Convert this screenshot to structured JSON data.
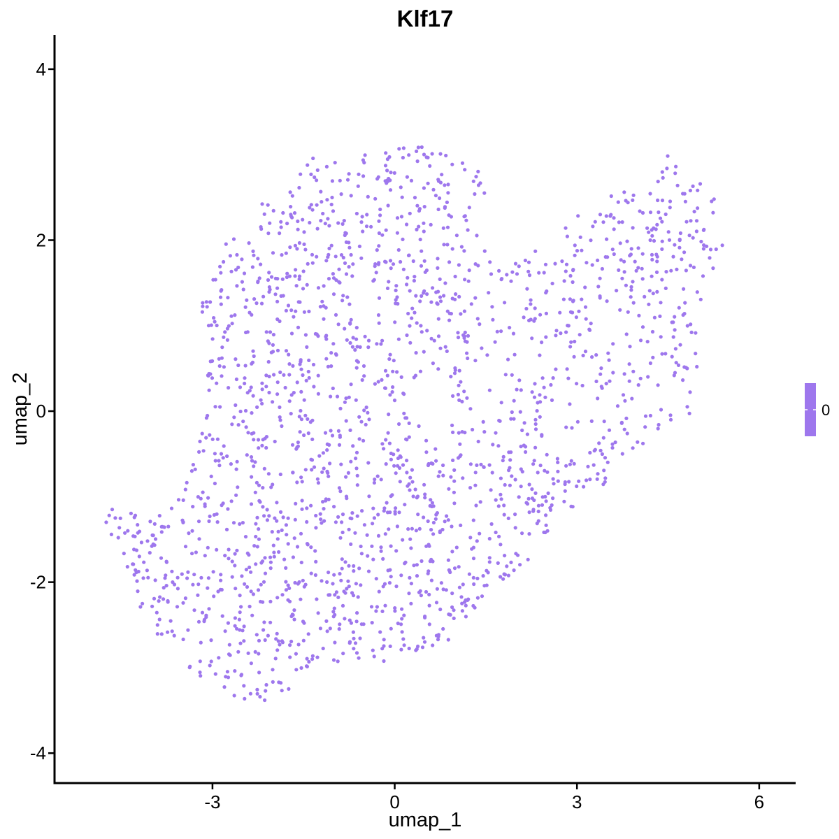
{
  "chart_data": {
    "type": "scatter",
    "title": "Klf17",
    "xlabel": "umap_1",
    "ylabel": "umap_2",
    "xlim": [
      -5.6,
      6.6
    ],
    "ylim": [
      -4.35,
      4.4
    ],
    "x_ticks": [
      -3,
      0,
      3,
      6
    ],
    "y_ticks": [
      4,
      2,
      0,
      -2,
      -4
    ],
    "x_tick_labels": [
      "-3",
      "0",
      "3",
      "6"
    ],
    "y_tick_labels": [
      "4",
      "2",
      "0",
      "-2",
      "-4"
    ],
    "grid": false,
    "point_color": "#9E77ED",
    "legend": {
      "type": "colorbar",
      "placement": "right",
      "color": "#9E77ED",
      "labels": [
        "0"
      ]
    },
    "expression_value_all_cells": 0,
    "cluster_outline": [
      [
        -4.7,
        -1.4
      ],
      [
        -4.5,
        -1.1
      ],
      [
        -4.1,
        -1.25
      ],
      [
        -3.6,
        -1.05
      ],
      [
        -3.2,
        -0.3
      ],
      [
        -3.05,
        0.3
      ],
      [
        -3.25,
        1.25
      ],
      [
        -2.9,
        1.9
      ],
      [
        -2.55,
        2.1
      ],
      [
        -2.25,
        2.55
      ],
      [
        -2.0,
        2.85
      ],
      [
        -1.2,
        3.0
      ],
      [
        -0.6,
        3.0
      ],
      [
        0.3,
        3.15
      ],
      [
        1.1,
        2.95
      ],
      [
        1.6,
        2.9
      ],
      [
        1.45,
        2.3
      ],
      [
        1.6,
        1.6
      ],
      [
        2.4,
        1.95
      ],
      [
        3.15,
        2.4
      ],
      [
        3.6,
        2.55
      ],
      [
        4.25,
        2.65
      ],
      [
        4.5,
        3.05
      ],
      [
        5.0,
        2.7
      ],
      [
        5.35,
        2.45
      ],
      [
        5.4,
        1.95
      ],
      [
        5.0,
        1.1
      ],
      [
        5.0,
        0.5
      ],
      [
        4.85,
        -0.05
      ],
      [
        4.3,
        -0.3
      ],
      [
        3.85,
        -0.5
      ],
      [
        3.45,
        -0.85
      ],
      [
        3.05,
        -1.2
      ],
      [
        2.5,
        -1.45
      ],
      [
        2.25,
        -1.8
      ],
      [
        1.7,
        -2.0
      ],
      [
        1.2,
        -2.45
      ],
      [
        0.85,
        -2.75
      ],
      [
        0.4,
        -2.85
      ],
      [
        -0.1,
        -2.95
      ],
      [
        -0.65,
        -2.9
      ],
      [
        -1.4,
        -3.05
      ],
      [
        -1.65,
        -3.25
      ],
      [
        -1.9,
        -3.3
      ],
      [
        -2.3,
        -3.5
      ],
      [
        -2.95,
        -3.2
      ],
      [
        -3.45,
        -3.05
      ],
      [
        -3.9,
        -2.75
      ],
      [
        -4.25,
        -2.2
      ],
      [
        -4.45,
        -1.75
      ]
    ],
    "cluster_voids": [
      [
        2.9,
        -0.1,
        0.5,
        0.45
      ],
      [
        3.5,
        0.75,
        0.35,
        0.35
      ],
      [
        0.6,
        -0.1,
        0.35,
        0.3
      ],
      [
        1.5,
        0.3,
        0.35,
        0.3
      ],
      [
        -0.3,
        1.2,
        0.3,
        0.3
      ],
      [
        2.3,
        0.7,
        0.3,
        0.3
      ]
    ],
    "n_points": 2000
  }
}
